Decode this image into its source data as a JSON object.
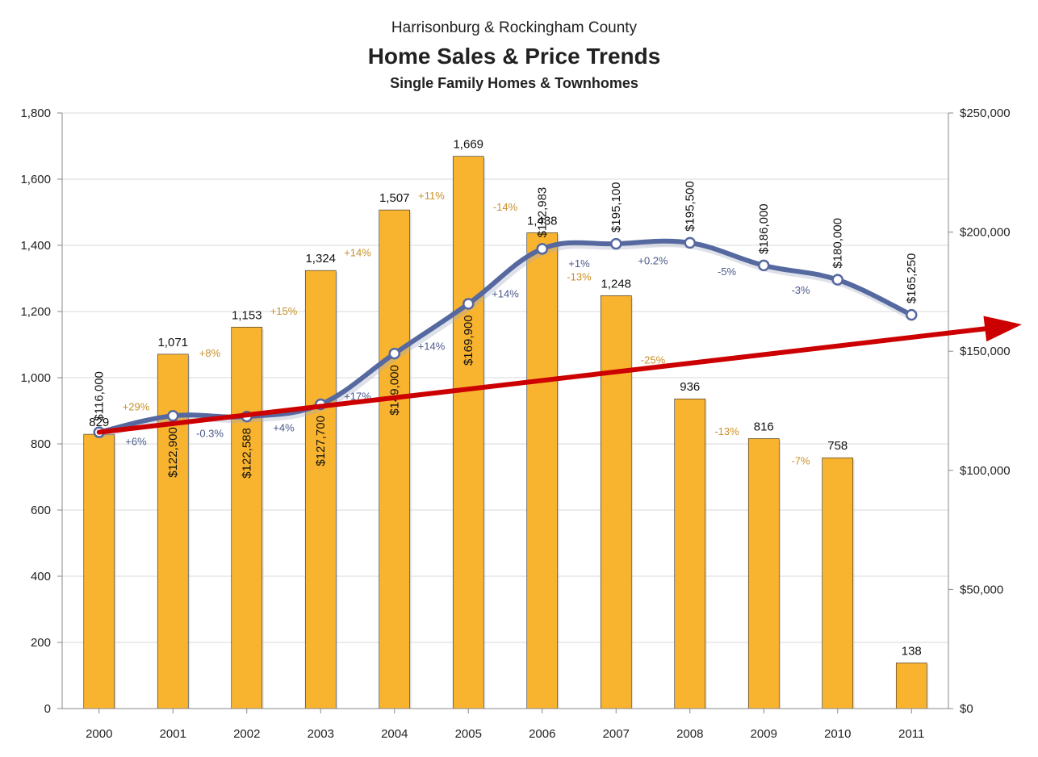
{
  "chart_data": {
    "type": "bar",
    "supertitle": "Harrisonburg & Rockingham County",
    "title": "Home Sales & Price Trends",
    "subtitle": "Single Family Homes & Townhomes",
    "categories": [
      "2000",
      "2001",
      "2002",
      "2003",
      "2004",
      "2005",
      "2006",
      "2007",
      "2008",
      "2009",
      "2010",
      "2011"
    ],
    "series": [
      {
        "axis": "left",
        "type": "bar",
        "values": [
          829,
          1071,
          1153,
          1324,
          1507,
          1669,
          1438,
          1248,
          936,
          816,
          758,
          138
        ],
        "labels": [
          "829",
          "1,071",
          "1,153",
          "1,324",
          "1,507",
          "1,669",
          "1,438",
          "1,248",
          "936",
          "816",
          "758",
          "138"
        ],
        "change_labels": [
          "+29%",
          "+8%",
          "+15%",
          "+14%",
          "+11%",
          "-14%",
          "-13%",
          "-25%",
          "-13%",
          "-7%"
        ],
        "color": "#f9b42f"
      },
      {
        "axis": "right",
        "type": "line",
        "values": [
          116000,
          122900,
          122588,
          127700,
          149000,
          169900,
          192983,
          195100,
          195500,
          186000,
          180000,
          165250
        ],
        "labels": [
          "$116,000",
          "$122,900",
          "$122,588",
          "$127,700",
          "$149,000",
          "$169,900",
          "$192,983",
          "$195,100",
          "$195,500",
          "$186,000",
          "$180,000",
          "$165,250"
        ],
        "change_labels": [
          "+6%",
          "-0.3%",
          "+4%",
          "+17%",
          "+14%",
          "+14%",
          "+1%",
          "+0.2%",
          "-5%",
          "-3%"
        ],
        "color": "#5569a0"
      }
    ],
    "trend_arrow": {
      "from": [
        0,
        116000
      ],
      "to": [
        12,
        167000
      ],
      "color": "#cc0000"
    },
    "ylim_left": [
      0,
      1800
    ],
    "yticks_left": [
      "0",
      "200",
      "400",
      "600",
      "800",
      "1,000",
      "1,200",
      "1,400",
      "1,600",
      "1,800"
    ],
    "ylim_right": [
      0,
      250000
    ],
    "yticks_right": [
      "$0",
      "$50,000",
      "$100,000",
      "$150,000",
      "$200,000",
      "$250,000"
    ],
    "grid": true,
    "legend": "none"
  }
}
